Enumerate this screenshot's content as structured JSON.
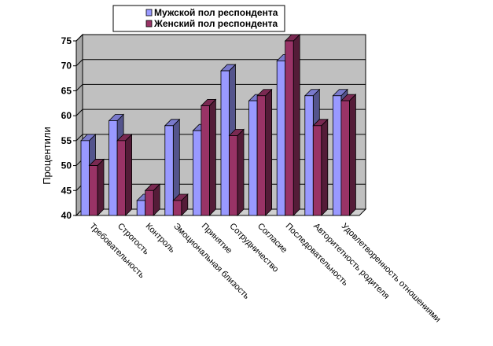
{
  "chart_data": {
    "type": "bar",
    "title": "",
    "xlabel": "",
    "ylabel": "Процентили",
    "ylim": [
      40,
      75
    ],
    "yticks": [
      40,
      45,
      50,
      55,
      60,
      65,
      70,
      75
    ],
    "grid": true,
    "legend_position": "top",
    "categories": [
      "Требовательность",
      "Строгость",
      "Контроль",
      "Эмоциональная близость",
      "Принятие",
      "Сотрудничество",
      "Согласие",
      "Последовательность",
      "Авторитетность родителя",
      "Удовлетворенность отношениями"
    ],
    "series": [
      {
        "name": "Мужской пол респондента",
        "color": "#9999ff",
        "values": [
          55,
          59,
          43,
          58,
          57,
          69,
          63,
          71,
          64,
          64
        ]
      },
      {
        "name": "Женский пол респондента",
        "color": "#993366",
        "values": [
          50,
          55,
          45,
          43,
          62,
          56,
          64,
          75,
          58,
          63
        ]
      }
    ]
  }
}
